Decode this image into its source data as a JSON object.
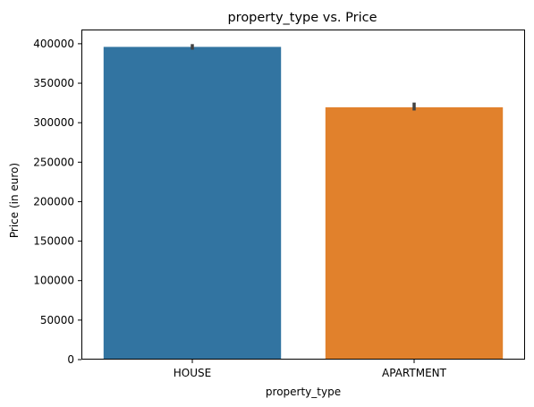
{
  "chart_data": {
    "type": "bar",
    "title": "property_type vs. Price",
    "xlabel": "property_type",
    "ylabel": "Price (in euro)",
    "categories": [
      "HOUSE",
      "APARTMENT"
    ],
    "values": [
      396000,
      319500
    ],
    "error_bars": [
      [
        392500,
        399500
      ],
      [
        315500,
        325500
      ]
    ],
    "colors": [
      "#3274a1",
      "#e1812c"
    ],
    "error_color": "#424242",
    "ylim": [
      0,
      418000
    ],
    "yticks": [
      0,
      50000,
      100000,
      150000,
      200000,
      250000,
      300000,
      350000,
      400000
    ],
    "ytick_labels": [
      "0",
      "50000",
      "100000",
      "150000",
      "200000",
      "250000",
      "300000",
      "350000",
      "400000"
    ],
    "grid": false,
    "legend": "none"
  }
}
